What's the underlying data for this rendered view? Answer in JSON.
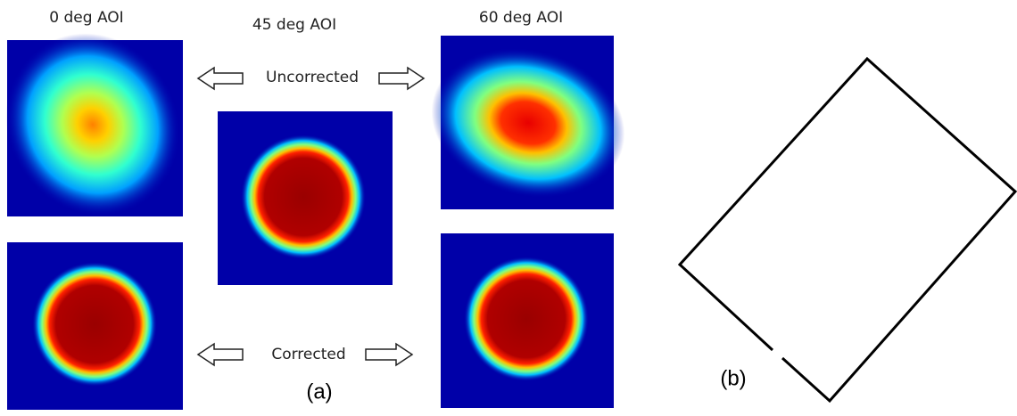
{
  "figure": {
    "columns": [
      "0 deg AOI",
      "45 deg AOI",
      "60 deg AOI"
    ],
    "rows": [
      "Uncorrected",
      "Corrected"
    ],
    "captions": [
      "(a)",
      "(b)"
    ]
  }
}
